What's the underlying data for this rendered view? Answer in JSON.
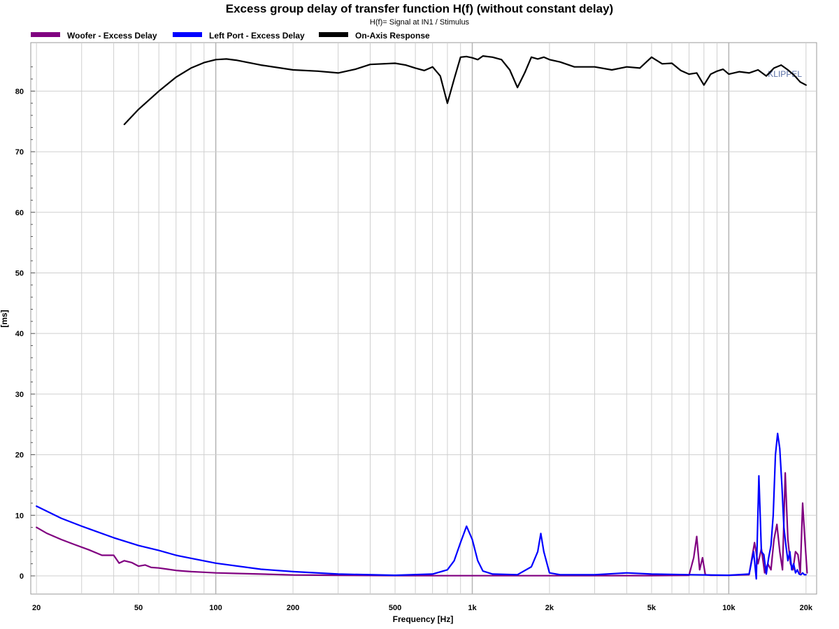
{
  "chart_data": {
    "type": "line",
    "title": "Excess group delay of transfer function H(f) (without constant delay)",
    "subtitle": "H(f)= Signal at IN1 / Stimulus",
    "xlabel": "Frequency [Hz]",
    "ylabel": "[ms]",
    "xscale": "log",
    "xlim": [
      19,
      22000
    ],
    "ylim": [
      -3,
      88
    ],
    "x_ticks": [
      20,
      50,
      100,
      200,
      500,
      1000,
      2000,
      5000,
      10000,
      20000
    ],
    "x_tick_labels": [
      "20",
      "50",
      "100",
      "200",
      "500",
      "1k",
      "2k",
      "5k",
      "10k",
      "20k"
    ],
    "y_ticks": [
      0,
      10,
      20,
      30,
      40,
      50,
      60,
      70,
      80
    ],
    "y_tick_labels": [
      "0",
      "10",
      "20",
      "30",
      "40",
      "50",
      "60",
      "70",
      "80"
    ],
    "grid": true,
    "legend_position": "top-left",
    "watermark": "KLIPPEL",
    "series": [
      {
        "name": "Woofer - Excess Delay",
        "color": "#800080",
        "x": [
          20,
          22,
          25,
          28,
          32,
          36,
          40,
          42,
          44,
          47,
          50,
          53,
          56,
          60,
          65,
          70,
          75,
          80,
          90,
          100,
          120,
          150,
          200,
          300,
          500,
          1000,
          2000,
          5000,
          7000,
          7300,
          7500,
          7700,
          7900,
          8100,
          8500,
          10000,
          12000,
          12600,
          13000,
          13400,
          13800,
          14200,
          14600,
          15000,
          15400,
          15800,
          16200,
          16600,
          17000,
          17400,
          17800,
          18200,
          18600,
          19000,
          19400,
          19800,
          20200
        ],
        "y": [
          8,
          7,
          6,
          5.2,
          4.3,
          3.4,
          3.4,
          2.1,
          2.5,
          2.2,
          1.6,
          1.8,
          1.4,
          1.3,
          1.1,
          0.9,
          0.8,
          0.7,
          0.6,
          0.5,
          0.4,
          0.3,
          0.15,
          0.1,
          0.05,
          0.03,
          0.03,
          0.05,
          0.1,
          3,
          6.5,
          1,
          3,
          0.2,
          0.1,
          0.1,
          0.2,
          5.5,
          2,
          4.5,
          0.5,
          2,
          1,
          6,
          8.5,
          4,
          1,
          17,
          6,
          2,
          1,
          4,
          3.5,
          0.5,
          12,
          6,
          0.5
        ]
      },
      {
        "name": "Left Port - Excess Delay",
        "color": "#0000ff",
        "x": [
          20,
          25,
          30,
          40,
          50,
          60,
          70,
          80,
          100,
          150,
          200,
          300,
          500,
          700,
          800,
          850,
          900,
          950,
          1000,
          1050,
          1100,
          1200,
          1500,
          1700,
          1800,
          1850,
          1900,
          2000,
          2200,
          3000,
          4000,
          5000,
          7000,
          10000,
          12000,
          12500,
          12800,
          13100,
          13400,
          13700,
          14000,
          14300,
          14600,
          14900,
          15200,
          15500,
          15800,
          16100,
          16400,
          16700,
          17000,
          17300,
          17600,
          17900,
          18200,
          18500,
          18800,
          19100,
          19400,
          19700,
          20000
        ],
        "y": [
          11.5,
          9.5,
          8.2,
          6.3,
          5,
          4.2,
          3.4,
          2.9,
          2.1,
          1.1,
          0.7,
          0.3,
          0.1,
          0.3,
          1,
          2.5,
          5.5,
          8.2,
          6,
          2.5,
          0.8,
          0.3,
          0.2,
          1.5,
          4,
          7,
          4,
          0.5,
          0.2,
          0.2,
          0.5,
          0.3,
          0.2,
          0.1,
          0.3,
          4,
          -0.5,
          16.5,
          4,
          3.5,
          0.3,
          3,
          5,
          10,
          20,
          23.5,
          21,
          15,
          8,
          5,
          2.5,
          4,
          1,
          2,
          0.5,
          1,
          0.3,
          0.2,
          0.5,
          0.2,
          0.2
        ]
      },
      {
        "name": "On-Axis Response",
        "color": "#000000",
        "x": [
          44,
          50,
          60,
          70,
          80,
          90,
          100,
          110,
          120,
          150,
          200,
          250,
          300,
          350,
          400,
          500,
          550,
          600,
          650,
          700,
          750,
          800,
          850,
          900,
          950,
          1000,
          1050,
          1100,
          1200,
          1300,
          1400,
          1500,
          1600,
          1700,
          1800,
          1900,
          2000,
          2200,
          2500,
          3000,
          3500,
          4000,
          4500,
          5000,
          5500,
          6000,
          6500,
          7000,
          7500,
          8000,
          8500,
          9000,
          9500,
          10000,
          11000,
          12000,
          13000,
          14000,
          15000,
          16000,
          17000,
          18000,
          19000,
          20000
        ],
        "y": [
          74.5,
          77,
          80,
          82.3,
          83.8,
          84.7,
          85.2,
          85.3,
          85.1,
          84.3,
          83.5,
          83.3,
          83,
          83.6,
          84.4,
          84.6,
          84.3,
          83.8,
          83.4,
          84,
          82.5,
          78,
          82,
          85.6,
          85.7,
          85.5,
          85.2,
          85.8,
          85.6,
          85.2,
          83.5,
          80.6,
          83,
          85.6,
          85.3,
          85.6,
          85.2,
          84.8,
          84,
          84,
          83.5,
          84,
          83.8,
          85.6,
          84.5,
          84.6,
          83.4,
          82.8,
          83,
          81,
          82.8,
          83.3,
          83.6,
          82.8,
          83.2,
          83,
          83.5,
          82.5,
          83.8,
          84.3,
          83.5,
          82.6,
          81.5,
          81
        ]
      }
    ]
  }
}
